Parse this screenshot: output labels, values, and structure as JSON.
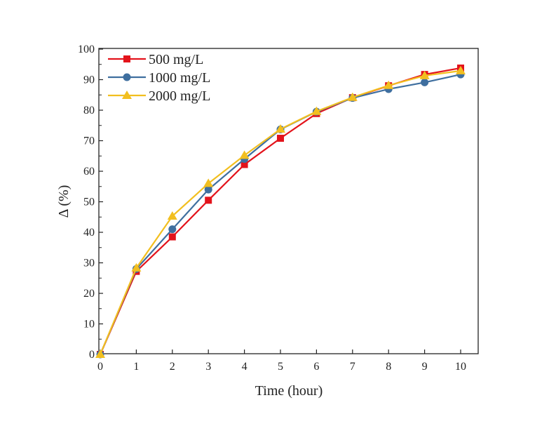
{
  "chart_data": {
    "type": "line",
    "title": "",
    "xlabel": "Time (hour)",
    "ylabel": "Δ (%)",
    "xlim": [
      0,
      10
    ],
    "ylim": [
      0,
      100
    ],
    "x_ticks": [
      "0",
      "1",
      "2",
      "3",
      "4",
      "5",
      "6",
      "7",
      "8",
      "9",
      "10"
    ],
    "y_ticks": [
      "0",
      "10",
      "20",
      "30",
      "40",
      "50",
      "60",
      "70",
      "80",
      "90",
      "100"
    ],
    "grid": false,
    "legend_position": "top-left",
    "x": [
      0,
      1,
      2,
      3,
      4,
      5,
      6,
      7,
      8,
      9,
      10
    ],
    "series": [
      {
        "name": "500 mg/L",
        "color": "#e3131b",
        "marker": "square",
        "values": [
          0,
          27.2,
          38.5,
          50.5,
          62.2,
          70.8,
          78.9,
          84.1,
          88.0,
          91.7,
          93.8
        ]
      },
      {
        "name": "1000 mg/L",
        "color": "#3f6f9f",
        "marker": "circle",
        "values": [
          0,
          28.0,
          41.0,
          54.0,
          64.0,
          73.7,
          79.5,
          84.0,
          86.9,
          89.1,
          91.7
        ]
      },
      {
        "name": "2000 mg/L",
        "color": "#f2bf1f",
        "marker": "triangle",
        "values": [
          0,
          28.3,
          45.3,
          56.0,
          65.2,
          73.8,
          79.6,
          84.2,
          88.1,
          91.3,
          92.9
        ]
      }
    ]
  }
}
